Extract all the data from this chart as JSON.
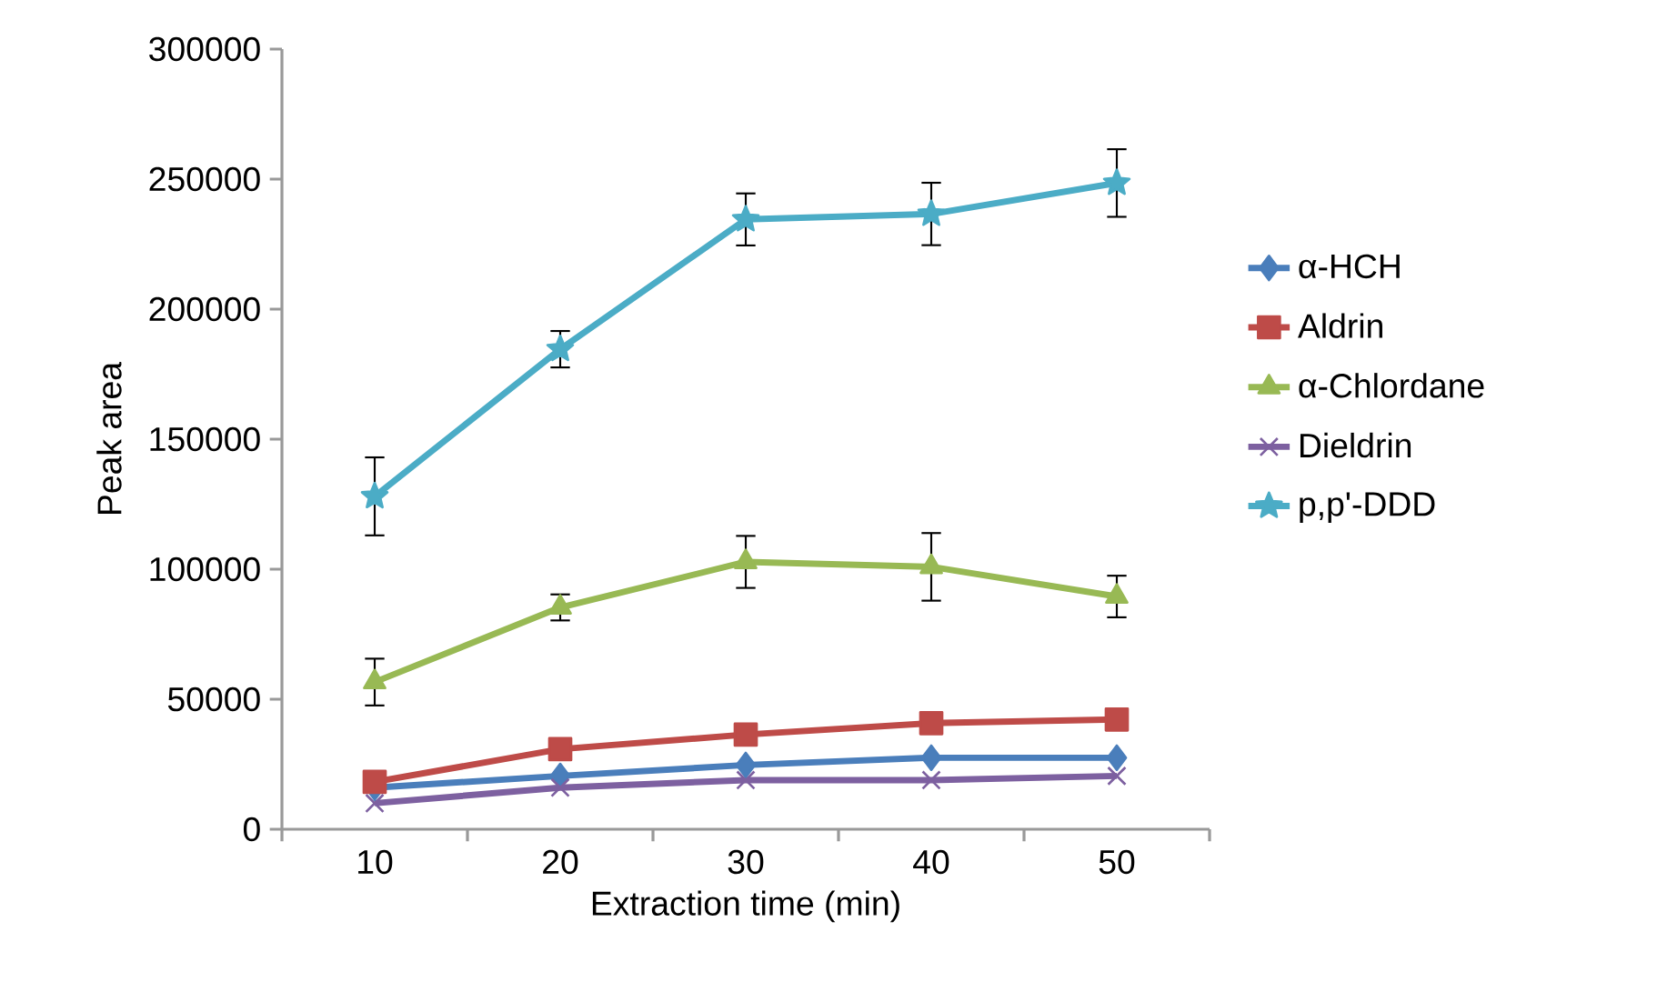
{
  "chart_data": {
    "type": "line",
    "xlabel": "Extraction time  (min)",
    "ylabel": "Peak area",
    "categories": [
      "10",
      "20",
      "30",
      "40",
      "50"
    ],
    "ylim": [
      0,
      300000
    ],
    "yticks": [
      0,
      50000,
      100000,
      150000,
      200000,
      250000,
      300000
    ],
    "legend": "right",
    "grid": false,
    "series": [
      {
        "name": "α-HCH",
        "color": "#4a7ebb",
        "marker": "diamond",
        "values": [
          16000,
          20500,
          24700,
          27500,
          27500
        ]
      },
      {
        "name": "Aldrin",
        "color": "#be4b48",
        "marker": "square",
        "values": [
          18200,
          30800,
          36400,
          40800,
          42200
        ]
      },
      {
        "name": "α-Chlordane",
        "color": "#98b954",
        "marker": "triangle",
        "values": [
          56600,
          85300,
          102800,
          100900,
          89500
        ],
        "errors": [
          9000,
          5000,
          10000,
          13000,
          8000
        ]
      },
      {
        "name": "Dieldrin",
        "color": "#7d60a0",
        "marker": "cross",
        "values": [
          10000,
          16000,
          18900,
          18900,
          20500
        ]
      },
      {
        "name": "p,p'-DDD",
        "color": "#4bacc6",
        "marker": "star",
        "values": [
          128000,
          184600,
          234500,
          236600,
          248500
        ],
        "errors": [
          15000,
          7000,
          10000,
          12000,
          13000
        ]
      }
    ]
  }
}
